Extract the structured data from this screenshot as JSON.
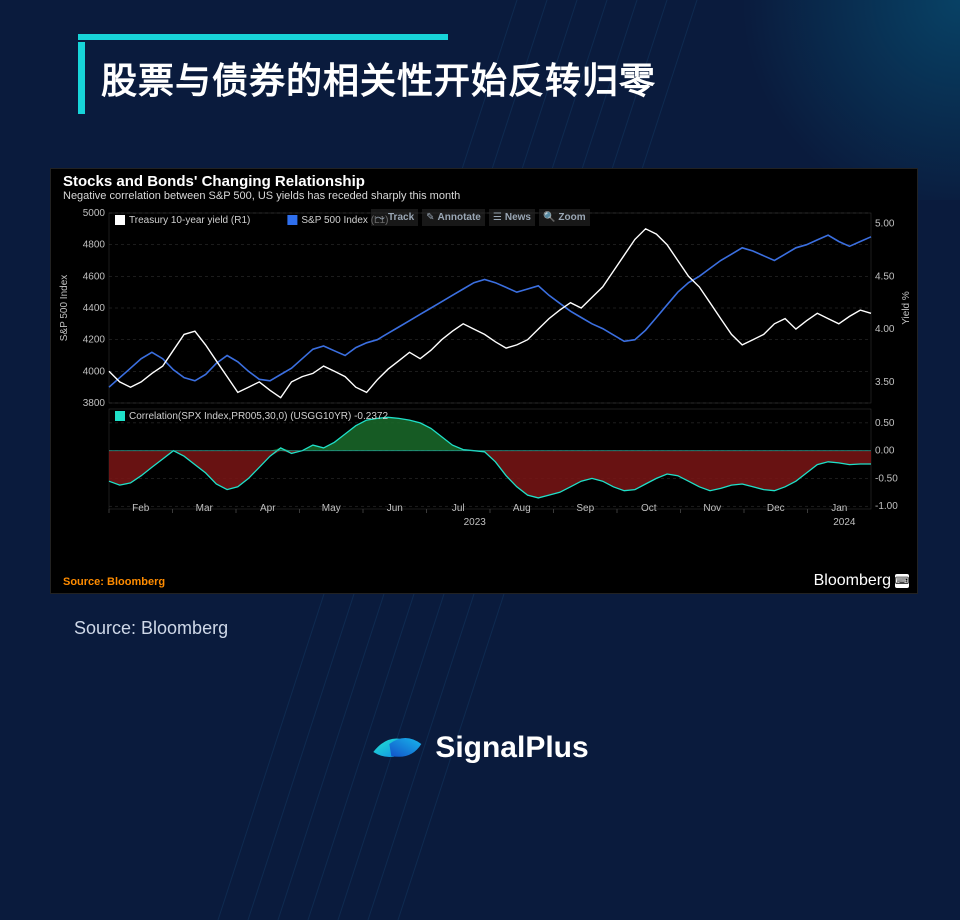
{
  "page": {
    "title": "股票与债券的相关性开始反转归零",
    "source_caption": "Source: Bloomberg",
    "brand": "SignalPlus",
    "accent_color": "#17d4d9",
    "bg_color": "#0a1b3d"
  },
  "chart": {
    "title": "Stocks and Bonds' Changing Relationship",
    "subtitle": "Negative correlation between S&P 500, US yields has receded sharply this month",
    "footer_source": "Source: Bloomberg",
    "brand_mark": "Bloomberg",
    "background_color": "#000000",
    "grid_color": "#3a3a3a",
    "toolbar": {
      "track": "Track",
      "annotate": "Annotate",
      "news": "News",
      "zoom": "Zoom"
    },
    "top_panel": {
      "left_axis": {
        "label": "S&P 500 Index",
        "ticks": [
          3800,
          4000,
          4200,
          4400,
          4600,
          4800,
          5000
        ],
        "min": 3800,
        "max": 5000,
        "color": "#c0c0c0",
        "label_fontsize": 10
      },
      "right_axis": {
        "label": "Yield %",
        "ticks": [
          3.5,
          4.0,
          4.5,
          5.0
        ],
        "min": 3.3,
        "max": 5.1,
        "color": "#c0c0c0",
        "label_fontsize": 10
      },
      "legend": [
        {
          "swatch": "#ffffff",
          "text": "Treasury 10-year yield (R1)"
        },
        {
          "swatch": "#2f6fed",
          "text": "S&P 500 Index (L1)"
        }
      ],
      "series_yield": {
        "name": "Treasury 10-year yield",
        "color": "#ffffff",
        "line_width": 1.4,
        "values": [
          3.6,
          3.5,
          3.45,
          3.5,
          3.58,
          3.65,
          3.8,
          3.95,
          3.98,
          3.85,
          3.7,
          3.55,
          3.4,
          3.45,
          3.5,
          3.42,
          3.35,
          3.5,
          3.55,
          3.58,
          3.65,
          3.6,
          3.55,
          3.45,
          3.4,
          3.52,
          3.62,
          3.7,
          3.78,
          3.72,
          3.8,
          3.9,
          3.98,
          4.05,
          4.0,
          3.95,
          3.88,
          3.82,
          3.85,
          3.9,
          4.0,
          4.1,
          4.18,
          4.25,
          4.2,
          4.3,
          4.4,
          4.55,
          4.7,
          4.85,
          4.95,
          4.9,
          4.8,
          4.65,
          4.5,
          4.4,
          4.25,
          4.1,
          3.95,
          3.85,
          3.9,
          3.95,
          4.05,
          4.1,
          4.0,
          4.08,
          4.15,
          4.1,
          4.05,
          4.12,
          4.18,
          4.15
        ]
      },
      "series_spx": {
        "name": "S&P 500 Index",
        "color": "#3b6fe0",
        "line_width": 1.6,
        "values": [
          3900,
          3960,
          4020,
          4080,
          4120,
          4080,
          4010,
          3960,
          3940,
          3980,
          4050,
          4100,
          4060,
          4000,
          3950,
          3940,
          3980,
          4020,
          4080,
          4140,
          4160,
          4130,
          4100,
          4150,
          4180,
          4200,
          4240,
          4280,
          4320,
          4360,
          4400,
          4440,
          4480,
          4520,
          4560,
          4580,
          4560,
          4530,
          4500,
          4520,
          4540,
          4480,
          4430,
          4380,
          4340,
          4300,
          4270,
          4230,
          4190,
          4200,
          4260,
          4340,
          4420,
          4500,
          4560,
          4600,
          4650,
          4700,
          4740,
          4780,
          4760,
          4730,
          4700,
          4740,
          4780,
          4800,
          4830,
          4860,
          4820,
          4790,
          4820,
          4850
        ]
      }
    },
    "bottom_panel": {
      "legend": {
        "swatch": "#1fe0c8",
        "text": "Correlation(SPX Index,PR005,30,0) (USGG10YR)  -0.2372"
      },
      "axis": {
        "ticks": [
          -1.0,
          -0.5,
          0.0,
          0.5
        ],
        "min": -1.05,
        "max": 0.75,
        "color": "#c0c0c0"
      },
      "zero_color": "#22c0b0",
      "pos_fill": "#1a6b2a",
      "neg_fill": "#7a1515",
      "line_color": "#1fe0c8",
      "values": [
        -0.55,
        -0.62,
        -0.58,
        -0.45,
        -0.3,
        -0.15,
        0.0,
        -0.1,
        -0.25,
        -0.4,
        -0.6,
        -0.7,
        -0.65,
        -0.5,
        -0.3,
        -0.1,
        0.05,
        -0.05,
        0.0,
        0.1,
        0.05,
        0.15,
        0.3,
        0.45,
        0.55,
        0.58,
        0.6,
        0.58,
        0.55,
        0.5,
        0.4,
        0.25,
        0.1,
        0.02,
        0.0,
        -0.02,
        -0.2,
        -0.45,
        -0.65,
        -0.8,
        -0.85,
        -0.8,
        -0.75,
        -0.65,
        -0.55,
        -0.5,
        -0.55,
        -0.65,
        -0.72,
        -0.7,
        -0.6,
        -0.5,
        -0.42,
        -0.45,
        -0.55,
        -0.65,
        -0.72,
        -0.68,
        -0.62,
        -0.6,
        -0.65,
        -0.7,
        -0.72,
        -0.65,
        -0.55,
        -0.4,
        -0.25,
        -0.2,
        -0.22,
        -0.25,
        -0.24,
        -0.24
      ]
    },
    "x_axis": {
      "labels": [
        "Feb",
        "Mar",
        "Apr",
        "May",
        "Jun",
        "Jul",
        "Aug",
        "Sep",
        "Oct",
        "Nov",
        "Dec",
        "Jan"
      ],
      "year_labels": [
        "2023",
        "2024"
      ],
      "color": "#c0c0c0"
    }
  }
}
